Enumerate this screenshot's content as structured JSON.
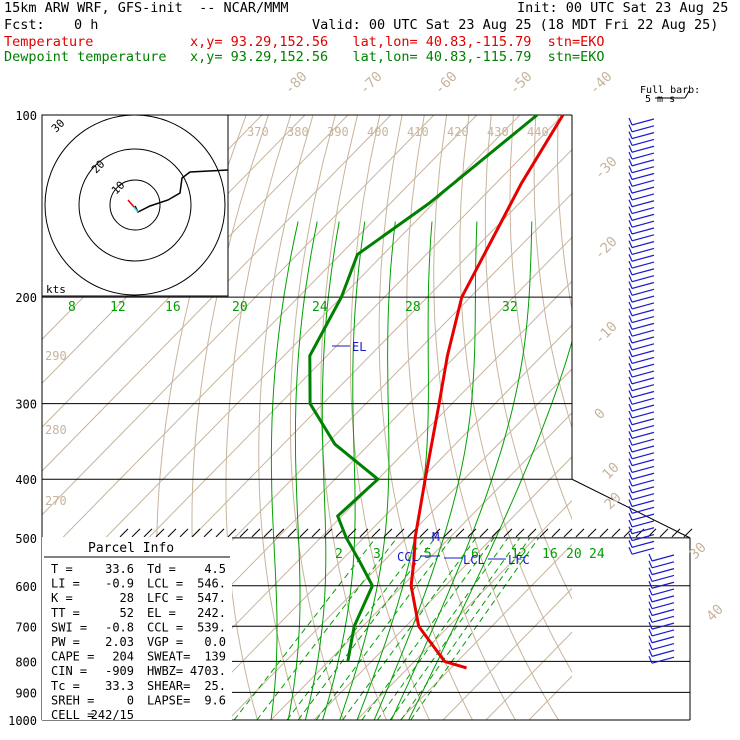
{
  "header": {
    "model": "15km ARW WRF, GFS-init  -- NCAR/MMM",
    "init": "Init: 00 UTC Sat 23 Aug 25",
    "fcst_label": "Fcst:",
    "fcst_value": "0 h",
    "valid": "Valid: 00 UTC Sat 23 Aug 25 (18 MDT Fri 22 Aug 25)",
    "temp_label": "Temperature",
    "temp_loc": "x,y= 93.29,152.56   lat,lon= 40.83,-115.79  stn=EKO",
    "dew_label": "Dewpoint temperature",
    "dew_loc": "x,y= 93.29,152.56   lat,lon= 40.83,-115.79  stn=EKO"
  },
  "barb_note": {
    "line1": "Full barb:",
    "line2": "5 m s"
  },
  "hodograph": {
    "rings": [
      "10",
      "20",
      "30"
    ],
    "unit": "kts"
  },
  "parcel": {
    "title": "Parcel Info",
    "rows": [
      [
        "T  =",
        "33.6",
        "Td =",
        "4.5"
      ],
      [
        "LI =",
        "-0.9",
        "LCL =",
        "546."
      ],
      [
        "K  =",
        "28",
        "LFC =",
        "547."
      ],
      [
        "TT =",
        "52",
        "EL  =",
        "242."
      ],
      [
        "SWI =",
        "-0.8",
        "CCL =",
        "539."
      ],
      [
        "PW =",
        "2.03",
        "VGP =",
        "0.0"
      ],
      [
        "CAPE =",
        "204",
        "SWEAT=",
        "139"
      ],
      [
        "CIN =",
        "-909",
        "HWBZ=",
        "4703."
      ],
      [
        "Tc =",
        "33.3",
        "SHEAR=",
        "25."
      ],
      [
        "SREH =",
        "0",
        "LAPSE=",
        "9.6"
      ],
      [
        "CELL =",
        "242/15",
        "",
        ""
      ]
    ]
  },
  "levels": {
    "lcl": "LCL",
    "lfc": "LFC",
    "el": "EL",
    "ccl": "CCL",
    "m": "M"
  },
  "colors": {
    "temperature": "#e60000",
    "dewpoint": "#008000",
    "wind": "#1a1acc",
    "isotherm": "#c8b49c",
    "mixing": "#00a000",
    "moist": "#00a000"
  },
  "chart_data": {
    "type": "line",
    "subtype": "skew-T log-p sounding",
    "pressure_levels": [
      100,
      200,
      300,
      400,
      500,
      600,
      700,
      800,
      900,
      1000
    ],
    "pressure_labels": [
      "100",
      "200",
      "300",
      "400",
      "500",
      "600",
      "700",
      "800",
      "900",
      "1000"
    ],
    "isotherm_labels": [
      "-80",
      "-70",
      "-60",
      "-50",
      "-40",
      "-30",
      "-20",
      "-10",
      "0",
      "10",
      "20",
      "30",
      "40"
    ],
    "theta_labels": [
      "370",
      "380",
      "390",
      "400",
      "410",
      "420",
      "430",
      "440"
    ],
    "theta_labels_left": [
      "290",
      "280",
      "270"
    ],
    "mixing_ratio_labels_upper": [
      "8",
      "12",
      "16",
      "20",
      "24",
      "28",
      "32"
    ],
    "mixing_ratio_labels_lower": [
      "2",
      "3",
      "5",
      "6",
      "12",
      "16",
      "20",
      "24"
    ],
    "series": [
      {
        "name": "Temperature",
        "points": [
          [
            100,
            -70
          ],
          [
            130,
            -64
          ],
          [
            150,
            -60
          ],
          [
            200,
            -52
          ],
          [
            250,
            -42
          ],
          [
            300,
            -33
          ],
          [
            400,
            -19
          ],
          [
            500,
            -8
          ],
          [
            546,
            -3
          ],
          [
            600,
            2
          ],
          [
            700,
            13
          ],
          [
            800,
            27
          ],
          [
            820,
            33.6
          ]
        ]
      },
      {
        "name": "Dewpoint temperature",
        "points": [
          [
            100,
            -76
          ],
          [
            140,
            -81
          ],
          [
            170,
            -86
          ],
          [
            200,
            -80
          ],
          [
            250,
            -74
          ],
          [
            300,
            -63
          ],
          [
            350,
            -48
          ],
          [
            400,
            -30
          ],
          [
            460,
            -31
          ],
          [
            500,
            -24
          ],
          [
            550,
            -15
          ],
          [
            600,
            -7
          ],
          [
            700,
            -2
          ],
          [
            800,
            4.5
          ]
        ]
      }
    ],
    "wind_barbs": 80
  }
}
